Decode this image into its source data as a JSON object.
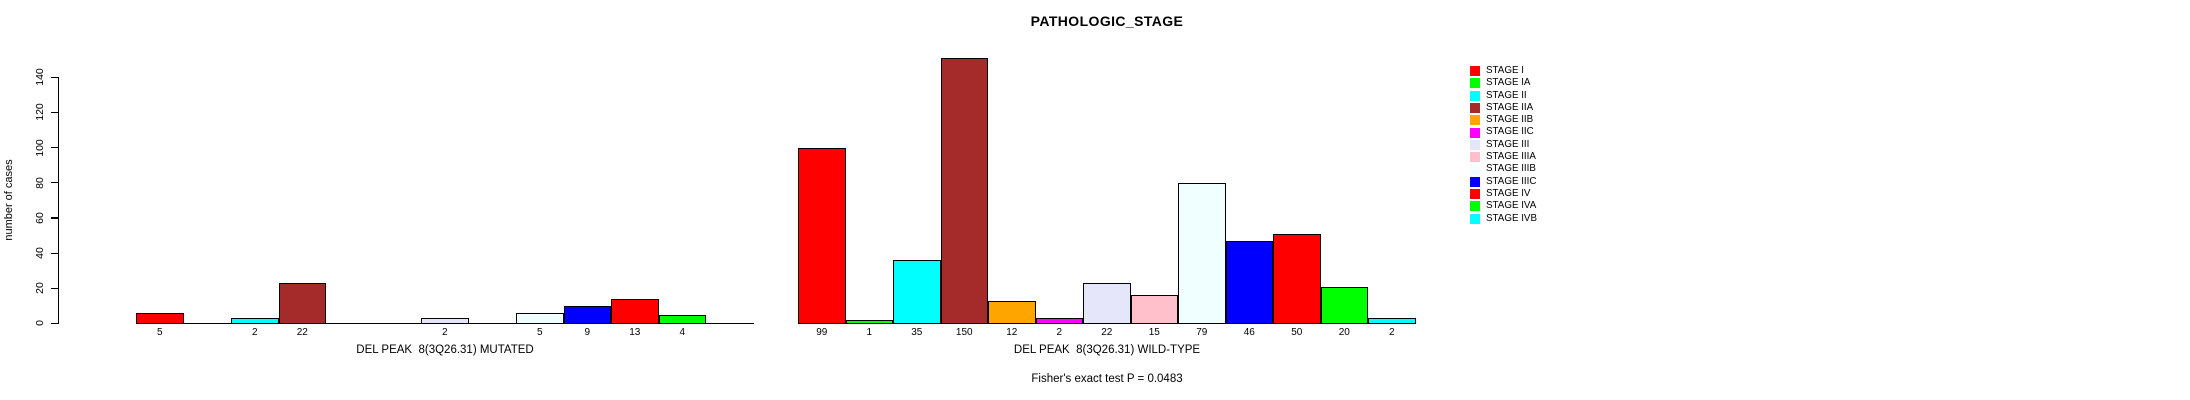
{
  "chart_data": {
    "type": "bar",
    "title": "PATHOLOGIC_STAGE",
    "ylabel": "number of cases",
    "ylim": [
      0,
      140
    ],
    "yticks": [
      0,
      20,
      40,
      60,
      80,
      100,
      120,
      140
    ],
    "grid": false,
    "legend_position": "right",
    "categories": [
      "STAGE I",
      "STAGE IA",
      "STAGE II",
      "STAGE IIA",
      "STAGE IIB",
      "STAGE IIC",
      "STAGE III",
      "STAGE IIIA",
      "STAGE IIIB",
      "STAGE IIIC",
      "STAGE IV",
      "STAGE IVA",
      "STAGE IVB"
    ],
    "colors": [
      "#FF0000",
      "#00FF00",
      "#00FFFF",
      "#A52A2A",
      "#FFA500",
      "#FF00FF",
      "#E6E6FA",
      "#FFC0CB",
      "#F0FFFF",
      "#0000FF",
      "#FF0000",
      "#00FF00",
      "#00FFFF"
    ],
    "series": [
      {
        "name": "DEL PEAK  8(3Q26.31) MUTATED",
        "values": [
          5,
          0,
          2,
          22,
          0,
          0,
          2,
          0,
          5,
          9,
          13,
          4,
          0
        ]
      },
      {
        "name": "DEL PEAK  8(3Q26.31) WILD-TYPE",
        "values": [
          99,
          1,
          35,
          150,
          12,
          2,
          22,
          15,
          79,
          46,
          50,
          20,
          2
        ]
      }
    ],
    "bar_labels_rule": "value shown under each bar when value > 0",
    "annotation": "Fisher's exact test P = 0.0483",
    "axis_color": "#000000",
    "background_color": "#FFFFFF"
  }
}
